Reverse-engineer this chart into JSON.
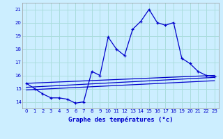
{
  "bg_color": "#cceeff",
  "grid_color": "#aadddd",
  "line_color": "#0000cc",
  "xlabel": "Graphe des températures (°c)",
  "xlabel_color": "#0000cc",
  "tick_color": "#0000cc",
  "xlim": [
    -0.5,
    23.5
  ],
  "ylim": [
    13.5,
    21.5
  ],
  "xticks": [
    0,
    1,
    2,
    3,
    4,
    5,
    6,
    7,
    8,
    9,
    10,
    11,
    12,
    13,
    14,
    15,
    16,
    17,
    18,
    19,
    20,
    21,
    22,
    23
  ],
  "yticks": [
    14,
    15,
    16,
    17,
    18,
    19,
    20,
    21
  ],
  "main_series_x": [
    0,
    1,
    2,
    3,
    4,
    5,
    6,
    7,
    8,
    9,
    10,
    11,
    12,
    13,
    14,
    15,
    16,
    17,
    18,
    19,
    20,
    21,
    22,
    23
  ],
  "main_series_y": [
    15.4,
    15.0,
    14.6,
    14.3,
    14.3,
    14.2,
    13.9,
    14.0,
    16.3,
    16.0,
    18.9,
    18.0,
    17.5,
    19.5,
    20.1,
    21.0,
    20.0,
    19.8,
    20.0,
    17.3,
    16.9,
    16.3,
    16.0,
    15.9
  ],
  "trend1_x": [
    0,
    23
  ],
  "trend1_y": [
    15.4,
    16.0
  ],
  "trend2_x": [
    0,
    23
  ],
  "trend2_y": [
    15.1,
    15.85
  ],
  "trend3_x": [
    0,
    23
  ],
  "trend3_y": [
    14.9,
    15.6
  ]
}
